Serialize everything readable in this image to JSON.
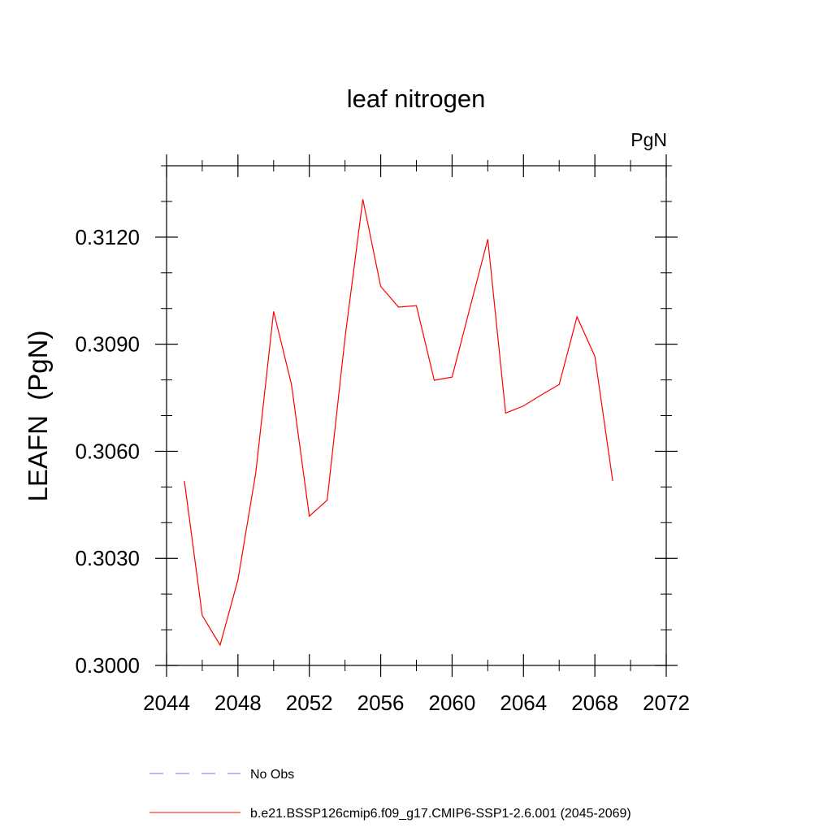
{
  "chart_data": {
    "type": "line",
    "title": "leaf nitrogen",
    "units_label": "PgN",
    "ylabel": "LEAFN  (PgN)",
    "xlabel": "",
    "xlim": [
      2044,
      2072
    ],
    "ylim": [
      0.3,
      0.314
    ],
    "x_ticks": [
      2044,
      2048,
      2052,
      2056,
      2060,
      2064,
      2068,
      2072
    ],
    "x_minor_ticks": [
      2046,
      2050,
      2054,
      2058,
      2062,
      2066,
      2070
    ],
    "y_ticks": [
      0.3,
      0.303,
      0.306,
      0.309,
      0.312
    ],
    "y_tick_labels": [
      "0.3000",
      "0.3030",
      "0.3060",
      "0.3090",
      "0.3120"
    ],
    "y_minor_ticks": [
      0.301,
      0.302,
      0.304,
      0.305,
      0.307,
      0.308,
      0.31,
      0.311,
      0.313,
      0.314
    ],
    "grid": false,
    "series": [
      {
        "name": "b.e21.BSSP126cmip6.f09_g17.CMIP6-SSP1-2.6.001 (2045-2069)",
        "color": "#ff0000",
        "style": "solid",
        "x": [
          2045,
          2046,
          2047,
          2048,
          2049,
          2050,
          2051,
          2052,
          2053,
          2054,
          2055,
          2056,
          2057,
          2058,
          2059,
          2060,
          2061,
          2062,
          2063,
          2064,
          2065,
          2066,
          2067,
          2068,
          2069
        ],
        "y": [
          0.30517,
          0.3014,
          0.30057,
          0.3024,
          0.3054,
          0.30992,
          0.30787,
          0.30418,
          0.30463,
          0.30918,
          0.31306,
          0.31062,
          0.31004,
          0.31008,
          0.30799,
          0.30808,
          0.31002,
          0.31194,
          0.30707,
          0.30727,
          0.30758,
          0.30787,
          0.30977,
          0.30866,
          0.30517
        ]
      }
    ],
    "legend": [
      {
        "label": "No Obs",
        "color": "#7777cc",
        "style": "dashed"
      },
      {
        "label": "b.e21.BSSP126cmip6.f09_g17.CMIP6-SSP1-2.6.001 (2045-2069)",
        "color": "#ff0000",
        "style": "solid"
      }
    ],
    "legend_position": "bottom"
  }
}
